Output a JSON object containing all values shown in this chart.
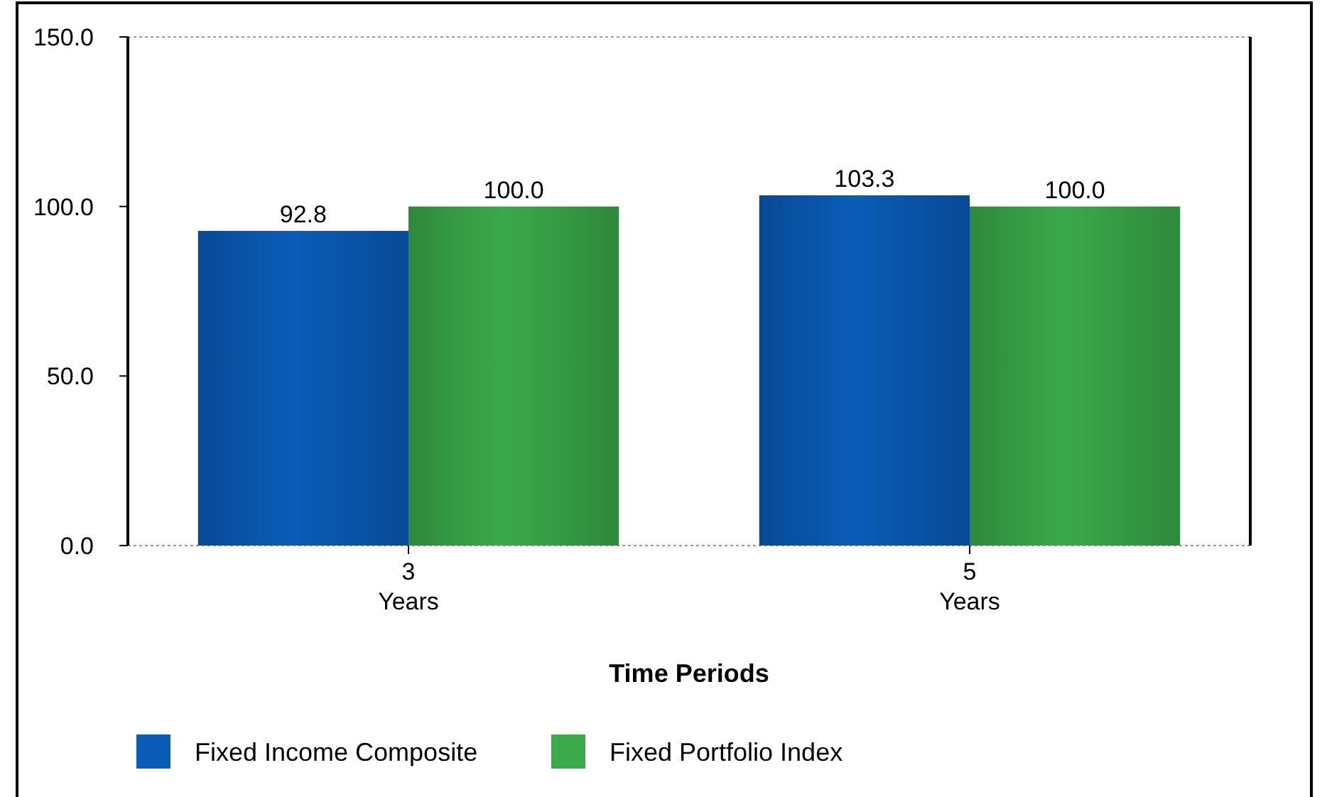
{
  "chart_data": {
    "type": "bar",
    "xlabel": "Time Periods",
    "categories": [
      "3 Years",
      "5 Years"
    ],
    "series": [
      {
        "name": "Fixed Income Composite",
        "color": "#0a5cb8",
        "values": [
          92.8,
          103.3
        ]
      },
      {
        "name": "Fixed Portfolio Index",
        "color": "#3aaa4a",
        "values": [
          100.0,
          100.0
        ]
      }
    ],
    "ylim": [
      0,
      150
    ],
    "yticks": [
      {
        "value": 0,
        "label": "0.0"
      },
      {
        "value": 50,
        "label": "50.0"
      },
      {
        "value": 100,
        "label": "100.0"
      },
      {
        "value": 150,
        "label": "150.0"
      }
    ],
    "value_labels": [
      [
        "92.8",
        "103.3"
      ],
      [
        "100.0",
        "100.0"
      ]
    ],
    "grid": false,
    "legend": "bottom left"
  }
}
